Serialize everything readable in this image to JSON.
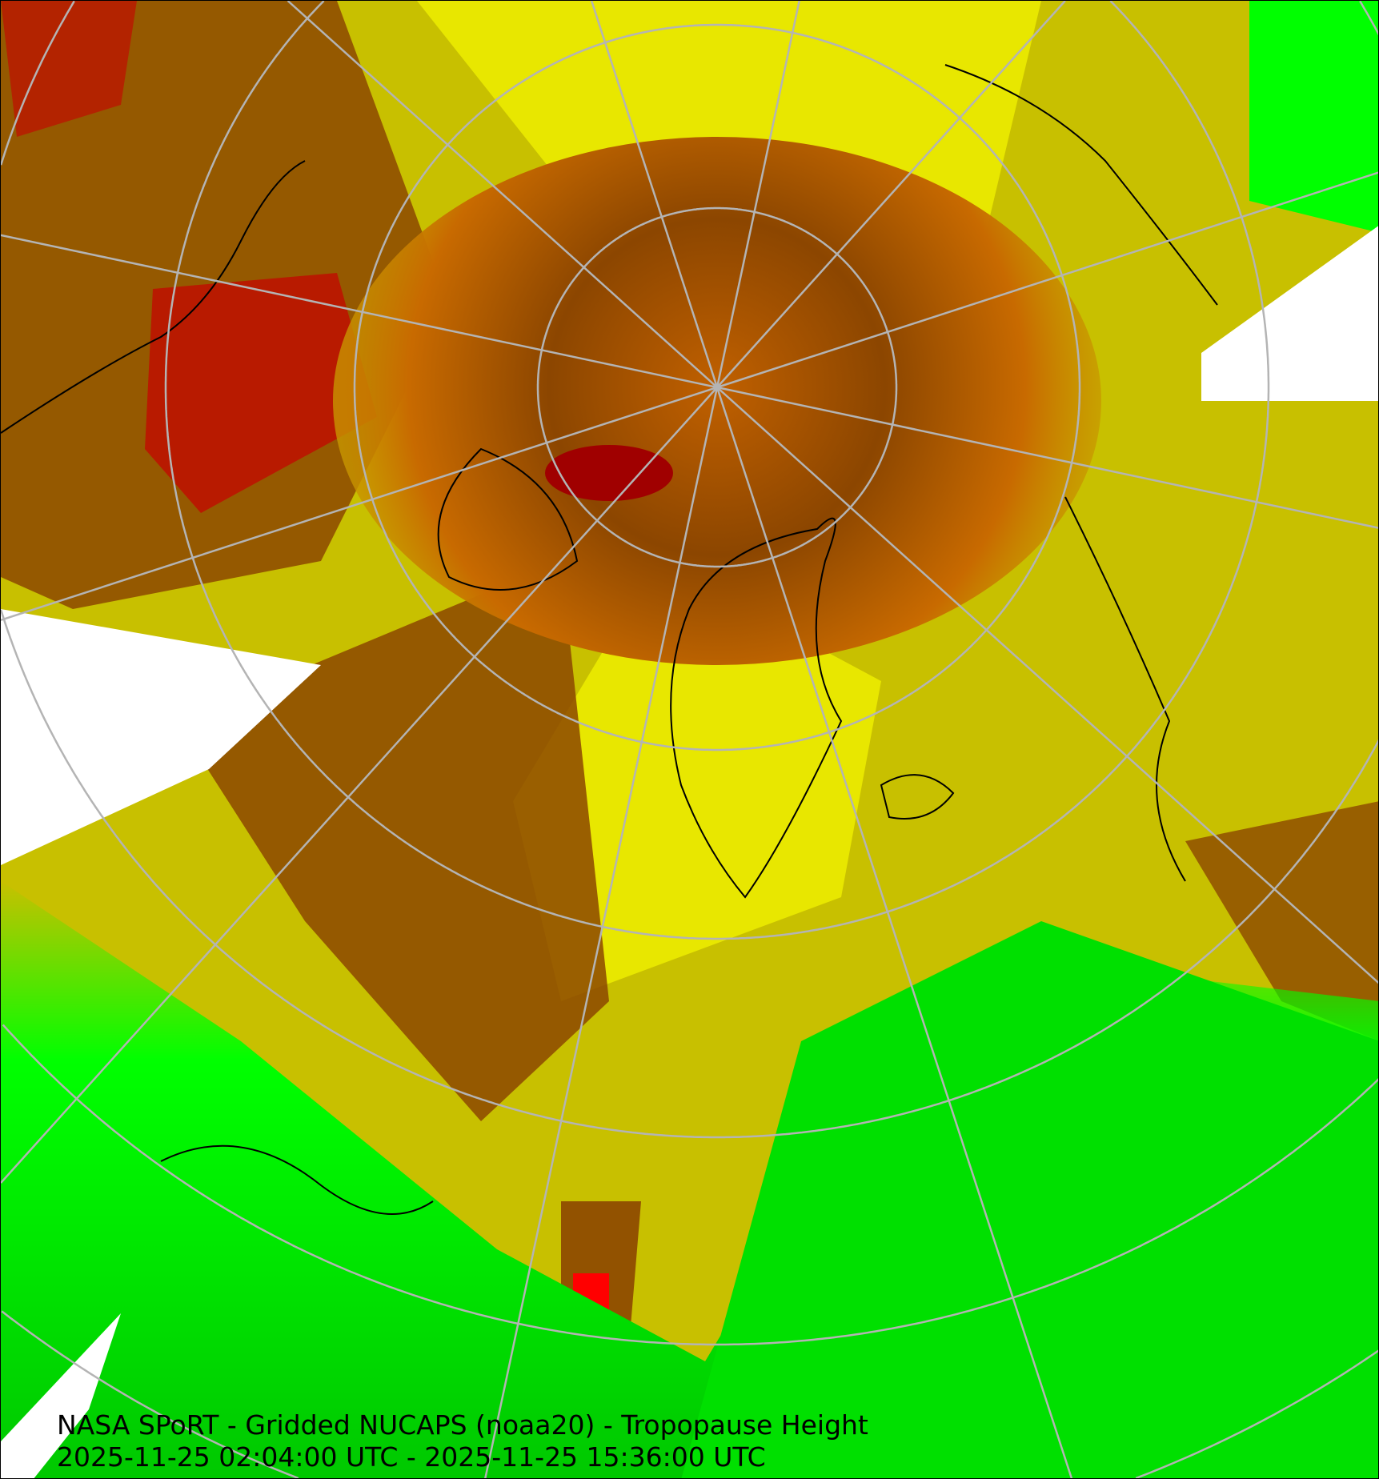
{
  "map": {
    "title": "NASA SPoRT - Gridded NUCAPS (noaa20) - Tropopause Height",
    "time_range": "2025-11-25 02:04:00 UTC - 2025-11-25 15:36:00 UTC",
    "projection": "north polar stereographic",
    "colors": {
      "green": "#00ff00",
      "dark_green": "#00c800",
      "olive": "#a09600",
      "yellow_olive": "#c8c000",
      "yellow": "#f0f000",
      "orange": "#ff8000",
      "brown": "#8c4600",
      "dark_red": "#a00000",
      "red": "#ff0000",
      "no_data": "#ffffff",
      "graticule": "#b4b4b4",
      "coastline": "#000000"
    }
  }
}
